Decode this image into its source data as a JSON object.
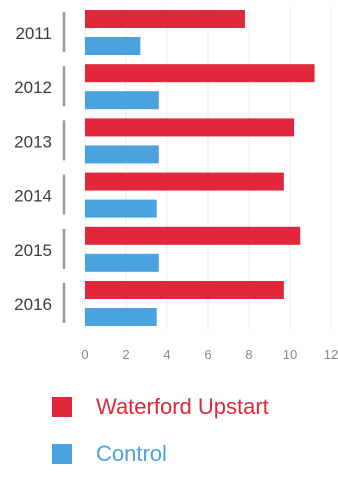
{
  "chart_data": {
    "type": "bar",
    "orientation": "horizontal",
    "categories": [
      "2011",
      "2012",
      "2013",
      "2014",
      "2015",
      "2016"
    ],
    "series": [
      {
        "name": "Waterford Upstart",
        "color": "#e0283a",
        "values": [
          7.8,
          11.2,
          10.2,
          9.7,
          10.5,
          9.7
        ]
      },
      {
        "name": "Control",
        "color": "#4aa3df",
        "values": [
          2.7,
          3.6,
          3.6,
          3.5,
          3.6,
          3.5
        ]
      }
    ],
    "xticks": [
      "0",
      "2",
      "4",
      "6",
      "8",
      "10",
      "12"
    ],
    "xlim": [
      0,
      12
    ],
    "grid": true,
    "legend_position": "bottom-left"
  }
}
